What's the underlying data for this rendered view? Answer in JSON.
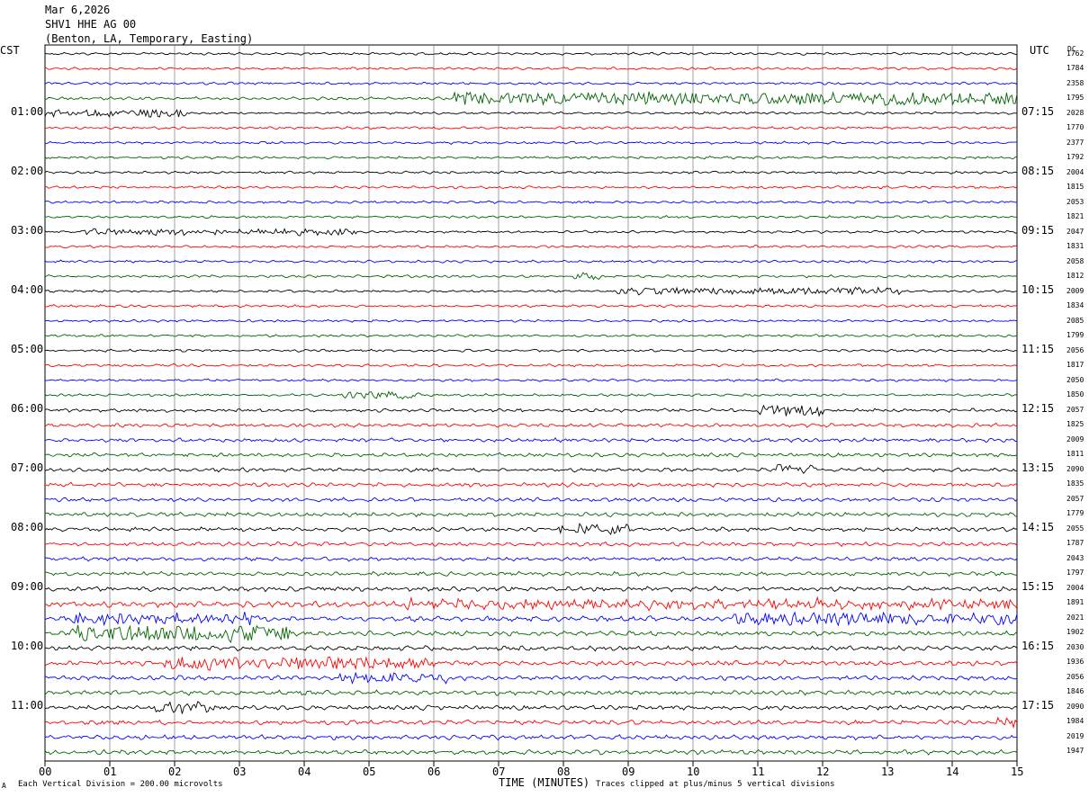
{
  "header": {
    "date": "Mar 6,2026",
    "channel": "SHV1 HHE AG 00",
    "station": "(Benton, LA, Temporary, Easting)"
  },
  "left_tz": "CST",
  "right_tz": "UTC",
  "right_col_header": "DC",
  "footer": {
    "xlabel": "TIME (MINUTES)",
    "scale_note": "Each Vertical Division =  200.00 microvolts",
    "clip_note": "Traces clipped at plus/minus 5 vertical divisions",
    "corner_mark": "A"
  },
  "chart_data": {
    "type": "line",
    "title": "",
    "xlabel": "TIME (MINUTES)",
    "xlim": [
      0,
      15
    ],
    "x_ticks": [
      "00",
      "01",
      "02",
      "03",
      "04",
      "05",
      "06",
      "07",
      "08",
      "09",
      "10",
      "11",
      "12",
      "13",
      "14",
      "15"
    ],
    "trace_colors": [
      "#000000",
      "#ff0000",
      "#0000ff",
      "#006400"
    ],
    "left_hour_labels": [
      {
        "row": 4,
        "text": "01:00"
      },
      {
        "row": 8,
        "text": "02:00"
      },
      {
        "row": 12,
        "text": "03:00"
      },
      {
        "row": 16,
        "text": "04:00"
      },
      {
        "row": 20,
        "text": "05:00"
      },
      {
        "row": 24,
        "text": "06:00"
      },
      {
        "row": 28,
        "text": "07:00"
      },
      {
        "row": 32,
        "text": "08:00"
      },
      {
        "row": 36,
        "text": "09:00"
      },
      {
        "row": 40,
        "text": "10:00"
      },
      {
        "row": 44,
        "text": "11:00"
      }
    ],
    "right_hour_labels": [
      {
        "row": 4,
        "text": "07:15"
      },
      {
        "row": 8,
        "text": "08:15"
      },
      {
        "row": 12,
        "text": "09:15"
      },
      {
        "row": 16,
        "text": "10:15"
      },
      {
        "row": 20,
        "text": "11:15"
      },
      {
        "row": 24,
        "text": "12:15"
      },
      {
        "row": 28,
        "text": "13:15"
      },
      {
        "row": 32,
        "text": "14:15"
      },
      {
        "row": 36,
        "text": "15:15"
      },
      {
        "row": 40,
        "text": "16:15"
      },
      {
        "row": 44,
        "text": "17:15"
      }
    ],
    "dc_offsets": [
      "1762",
      "1784",
      "2358",
      "1795",
      "2028",
      "1770",
      "2377",
      "1792",
      "2004",
      "1815",
      "2053",
      "1821",
      "2047",
      "1831",
      "2058",
      "1812",
      "2009",
      "1834",
      "2085",
      "1799",
      "2056",
      "1817",
      "2050",
      "1850",
      "2057",
      "1825",
      "2009",
      "1811",
      "2090",
      "1835",
      "2057",
      "1779",
      "2055",
      "1787",
      "2043",
      "1797",
      "2004",
      "1891",
      "2021",
      "1902",
      "2030",
      "1936",
      "2056",
      "1846",
      "2090",
      "1984",
      "2019",
      "1947"
    ],
    "trace_amplitudes": [
      1,
      1,
      1,
      1.2,
      1,
      1,
      1,
      1,
      1,
      1,
      1,
      1,
      1,
      1,
      1,
      1,
      1,
      1,
      1,
      1,
      1,
      1,
      1,
      1,
      1.4,
      1.5,
      1.5,
      1.5,
      1.5,
      1.6,
      1.6,
      1.6,
      1.6,
      1.6,
      1.6,
      1.6,
      1.8,
      2.4,
      2.0,
      1.8,
      1.8,
      1.9,
      1.8,
      1.8,
      1.8,
      1.8,
      1.8,
      1.8
    ],
    "events": [
      {
        "row": 3,
        "start_min": 6.3,
        "end_min": 15,
        "amp": 3.5
      },
      {
        "row": 4,
        "start_min": 0,
        "end_min": 2.2,
        "amp": 2.0
      },
      {
        "row": 12,
        "start_min": 0.6,
        "end_min": 4.8,
        "amp": 1.6
      },
      {
        "row": 15,
        "start_min": 8.1,
        "end_min": 8.6,
        "amp": 2.0
      },
      {
        "row": 16,
        "start_min": 8.8,
        "end_min": 13.2,
        "amp": 2.0
      },
      {
        "row": 23,
        "start_min": 4.6,
        "end_min": 5.8,
        "amp": 2.0
      },
      {
        "row": 24,
        "start_min": 11.0,
        "end_min": 12.0,
        "amp": 3.0
      },
      {
        "row": 28,
        "start_min": 11.3,
        "end_min": 11.9,
        "amp": 3.0
      },
      {
        "row": 32,
        "start_min": 7.9,
        "end_min": 9.0,
        "amp": 3.0
      },
      {
        "row": 37,
        "start_min": 5.5,
        "end_min": 15,
        "amp": 2.2
      },
      {
        "row": 38,
        "start_min": 0.4,
        "end_min": 3.3,
        "amp": 2.6
      },
      {
        "row": 38,
        "start_min": 10.6,
        "end_min": 15,
        "amp": 3.2
      },
      {
        "row": 39,
        "start_min": 0.4,
        "end_min": 3.8,
        "amp": 4.5
      },
      {
        "row": 41,
        "start_min": 1.8,
        "end_min": 6.0,
        "amp": 3.5
      },
      {
        "row": 42,
        "start_min": 4.5,
        "end_min": 6.2,
        "amp": 2.5
      },
      {
        "row": 44,
        "start_min": 1.7,
        "end_min": 2.6,
        "amp": 3.0
      },
      {
        "row": 45,
        "start_min": 14.7,
        "end_min": 15,
        "amp": 2.5
      }
    ]
  }
}
